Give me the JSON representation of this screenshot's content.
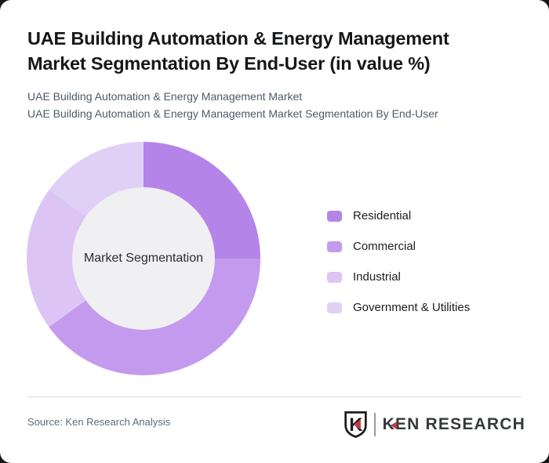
{
  "header": {
    "title_line1": "UAE Building Automation & Energy Management",
    "title_line2": "Market Segmentation By End-User (in value %)",
    "subtitle1": "UAE Building Automation & Energy Management Market",
    "subtitle2": "UAE Building Automation & Energy Management Market Segmentation By End-User"
  },
  "chart_data": {
    "type": "pie",
    "variant": "donut",
    "title": "UAE Building Automation & Energy Management Market Segmentation By End-User (in value %)",
    "unit": "value %",
    "center_label": "Market Segmentation",
    "start_angle_deg": 0,
    "direction": "clockwise",
    "legend_position": "right",
    "hole_color": "#f0eff1",
    "series": [
      {
        "name": "Residential",
        "value": 25,
        "color": "#b584e8"
      },
      {
        "name": "Commercial",
        "value": 40,
        "color": "#c49aee"
      },
      {
        "name": "Industrial",
        "value": 20,
        "color": "#dcc4f4"
      },
      {
        "name": "Government & Utilities",
        "value": 15,
        "color": "#e1d0f6"
      }
    ]
  },
  "footer": {
    "source": "Source: Ken Research Analysis",
    "logo": {
      "monogram": "K",
      "text_k": "K",
      "text_rest": "EN RESEARCH",
      "accent_color": "#c23a3e"
    }
  }
}
